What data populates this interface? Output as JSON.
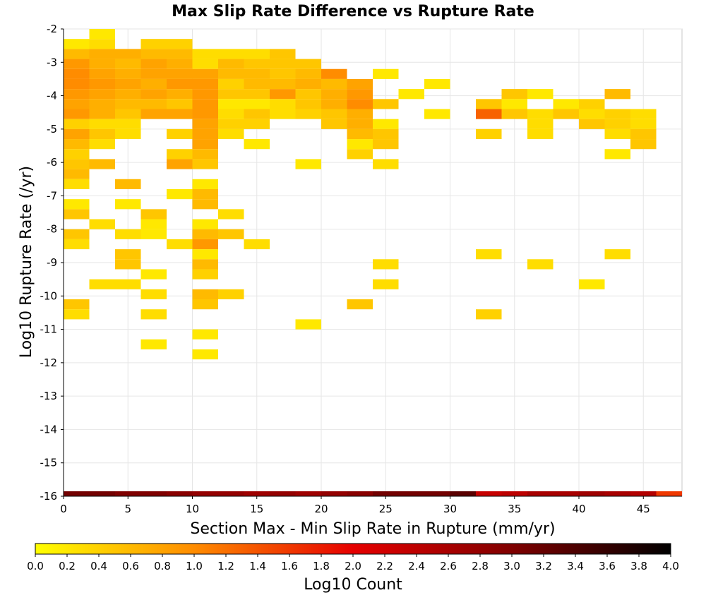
{
  "chart_data": {
    "type": "heatmap",
    "title": "Max Slip Rate Difference vs Rupture Rate",
    "xlabel": "Section Max - Min Slip Rate in Rupture (mm/yr)",
    "ylabel": "Log10 Rupture Rate (/yr)",
    "xlim": [
      0,
      48
    ],
    "ylim": [
      -16,
      -2
    ],
    "x_bin_width": 2,
    "y_bin_width": 0.3,
    "x_ticks": [
      0,
      5,
      10,
      15,
      20,
      25,
      30,
      35,
      40,
      45
    ],
    "y_ticks": [
      -2,
      -3,
      -4,
      -5,
      -6,
      -7,
      -8,
      -9,
      -10,
      -11,
      -12,
      -13,
      -14,
      -15,
      -16
    ],
    "colorbar": {
      "label": "Log10 Count",
      "range": [
        0,
        4
      ],
      "ticks": [
        "0.0",
        "0.2",
        "0.4",
        "0.6",
        "0.8",
        "1.0",
        "1.2",
        "1.4",
        "1.6",
        "1.8",
        "2.0",
        "2.2",
        "2.4",
        "2.6",
        "2.8",
        "3.0",
        "3.2",
        "3.4",
        "3.6",
        "3.8",
        "4.0"
      ],
      "colors": [
        "#ffff00",
        "#ff8c00",
        "#e60000",
        "#800000",
        "#000000"
      ]
    },
    "grid": true,
    "legend": "colorbar-bottom",
    "cells": [
      {
        "x": 3,
        "y": -2.15,
        "v": 0.2
      },
      {
        "x": 1,
        "y": -2.45,
        "v": 0.2
      },
      {
        "x": 3,
        "y": -2.45,
        "v": 0.3
      },
      {
        "x": 7,
        "y": -2.45,
        "v": 0.4
      },
      {
        "x": 9,
        "y": -2.45,
        "v": 0.4
      },
      {
        "x": 1,
        "y": -2.75,
        "v": 0.6
      },
      {
        "x": 3,
        "y": -2.75,
        "v": 0.7
      },
      {
        "x": 5,
        "y": -2.75,
        "v": 0.7
      },
      {
        "x": 7,
        "y": -2.75,
        "v": 0.6
      },
      {
        "x": 9,
        "y": -2.75,
        "v": 0.6
      },
      {
        "x": 11,
        "y": -2.75,
        "v": 0.3
      },
      {
        "x": 13,
        "y": -2.75,
        "v": 0.3
      },
      {
        "x": 15,
        "y": -2.75,
        "v": 0.3
      },
      {
        "x": 17,
        "y": -2.75,
        "v": 0.5
      },
      {
        "x": 1,
        "y": -3.05,
        "v": 0.9
      },
      {
        "x": 3,
        "y": -3.05,
        "v": 0.7
      },
      {
        "x": 5,
        "y": -3.05,
        "v": 0.6
      },
      {
        "x": 7,
        "y": -3.05,
        "v": 0.8
      },
      {
        "x": 9,
        "y": -3.05,
        "v": 0.7
      },
      {
        "x": 11,
        "y": -3.05,
        "v": 0.3
      },
      {
        "x": 13,
        "y": -3.05,
        "v": 0.6
      },
      {
        "x": 15,
        "y": -3.05,
        "v": 0.5
      },
      {
        "x": 17,
        "y": -3.05,
        "v": 0.5
      },
      {
        "x": 19,
        "y": -3.05,
        "v": 0.5
      },
      {
        "x": 1,
        "y": -3.35,
        "v": 1.0
      },
      {
        "x": 3,
        "y": -3.35,
        "v": 0.8
      },
      {
        "x": 5,
        "y": -3.35,
        "v": 0.7
      },
      {
        "x": 7,
        "y": -3.35,
        "v": 0.8
      },
      {
        "x": 9,
        "y": -3.35,
        "v": 0.8
      },
      {
        "x": 11,
        "y": -3.35,
        "v": 0.8
      },
      {
        "x": 13,
        "y": -3.35,
        "v": 0.6
      },
      {
        "x": 15,
        "y": -3.35,
        "v": 0.6
      },
      {
        "x": 17,
        "y": -3.35,
        "v": 0.5
      },
      {
        "x": 19,
        "y": -3.35,
        "v": 0.6
      },
      {
        "x": 21,
        "y": -3.35,
        "v": 1.0
      },
      {
        "x": 25,
        "y": -3.35,
        "v": 0.2
      },
      {
        "x": 1,
        "y": -3.65,
        "v": 1.0
      },
      {
        "x": 3,
        "y": -3.65,
        "v": 0.9
      },
      {
        "x": 5,
        "y": -3.65,
        "v": 0.8
      },
      {
        "x": 7,
        "y": -3.65,
        "v": 0.7
      },
      {
        "x": 9,
        "y": -3.65,
        "v": 0.9
      },
      {
        "x": 11,
        "y": -3.65,
        "v": 0.9
      },
      {
        "x": 13,
        "y": -3.65,
        "v": 0.4
      },
      {
        "x": 15,
        "y": -3.65,
        "v": 0.6
      },
      {
        "x": 17,
        "y": -3.65,
        "v": 0.6
      },
      {
        "x": 19,
        "y": -3.65,
        "v": 0.7
      },
      {
        "x": 21,
        "y": -3.65,
        "v": 0.6
      },
      {
        "x": 23,
        "y": -3.65,
        "v": 0.8
      },
      {
        "x": 29,
        "y": -3.65,
        "v": 0.2
      },
      {
        "x": 1,
        "y": -3.95,
        "v": 0.9
      },
      {
        "x": 3,
        "y": -3.95,
        "v": 0.8
      },
      {
        "x": 5,
        "y": -3.95,
        "v": 0.7
      },
      {
        "x": 7,
        "y": -3.95,
        "v": 0.8
      },
      {
        "x": 9,
        "y": -3.95,
        "v": 0.7
      },
      {
        "x": 11,
        "y": -3.95,
        "v": 0.9
      },
      {
        "x": 13,
        "y": -3.95,
        "v": 0.5
      },
      {
        "x": 15,
        "y": -3.95,
        "v": 0.5
      },
      {
        "x": 17,
        "y": -3.95,
        "v": 0.9
      },
      {
        "x": 19,
        "y": -3.95,
        "v": 0.5
      },
      {
        "x": 21,
        "y": -3.95,
        "v": 0.7
      },
      {
        "x": 23,
        "y": -3.95,
        "v": 0.9
      },
      {
        "x": 27,
        "y": -3.95,
        "v": 0.2
      },
      {
        "x": 35,
        "y": -3.95,
        "v": 0.5
      },
      {
        "x": 37,
        "y": -3.95,
        "v": 0.2
      },
      {
        "x": 43,
        "y": -3.95,
        "v": 0.6
      },
      {
        "x": 1,
        "y": -4.25,
        "v": 0.8
      },
      {
        "x": 3,
        "y": -4.25,
        "v": 0.7
      },
      {
        "x": 5,
        "y": -4.25,
        "v": 0.6
      },
      {
        "x": 7,
        "y": -4.25,
        "v": 0.6
      },
      {
        "x": 9,
        "y": -4.25,
        "v": 0.5
      },
      {
        "x": 11,
        "y": -4.25,
        "v": 0.9
      },
      {
        "x": 13,
        "y": -4.25,
        "v": 0.2
      },
      {
        "x": 15,
        "y": -4.25,
        "v": 0.2
      },
      {
        "x": 17,
        "y": -4.25,
        "v": 0.3
      },
      {
        "x": 19,
        "y": -4.25,
        "v": 0.5
      },
      {
        "x": 21,
        "y": -4.25,
        "v": 0.7
      },
      {
        "x": 23,
        "y": -4.25,
        "v": 1.0
      },
      {
        "x": 25,
        "y": -4.25,
        "v": 0.5
      },
      {
        "x": 33,
        "y": -4.25,
        "v": 0.5
      },
      {
        "x": 35,
        "y": -4.25,
        "v": 0.2
      },
      {
        "x": 39,
        "y": -4.25,
        "v": 0.2
      },
      {
        "x": 41,
        "y": -4.25,
        "v": 0.4
      },
      {
        "x": 1,
        "y": -4.55,
        "v": 0.9
      },
      {
        "x": 3,
        "y": -4.55,
        "v": 0.7
      },
      {
        "x": 5,
        "y": -4.55,
        "v": 0.5
      },
      {
        "x": 7,
        "y": -4.55,
        "v": 0.8
      },
      {
        "x": 9,
        "y": -4.55,
        "v": 0.8
      },
      {
        "x": 11,
        "y": -4.55,
        "v": 0.9
      },
      {
        "x": 13,
        "y": -4.55,
        "v": 0.3
      },
      {
        "x": 15,
        "y": -4.55,
        "v": 0.5
      },
      {
        "x": 17,
        "y": -4.55,
        "v": 0.3
      },
      {
        "x": 19,
        "y": -4.55,
        "v": 0.4
      },
      {
        "x": 21,
        "y": -4.55,
        "v": 0.5
      },
      {
        "x": 23,
        "y": -4.55,
        "v": 0.7
      },
      {
        "x": 29,
        "y": -4.55,
        "v": 0.2
      },
      {
        "x": 33,
        "y": -4.55,
        "v": 1.3
      },
      {
        "x": 35,
        "y": -4.55,
        "v": 0.5
      },
      {
        "x": 37,
        "y": -4.55,
        "v": 0.3
      },
      {
        "x": 39,
        "y": -4.55,
        "v": 0.5
      },
      {
        "x": 41,
        "y": -4.55,
        "v": 0.3
      },
      {
        "x": 43,
        "y": -4.55,
        "v": 0.4
      },
      {
        "x": 45,
        "y": -4.55,
        "v": 0.3
      },
      {
        "x": 1,
        "y": -4.85,
        "v": 0.4
      },
      {
        "x": 3,
        "y": -4.85,
        "v": 0.3
      },
      {
        "x": 5,
        "y": -4.85,
        "v": 0.3
      },
      {
        "x": 11,
        "y": -4.85,
        "v": 0.8
      },
      {
        "x": 13,
        "y": -4.85,
        "v": 0.4
      },
      {
        "x": 15,
        "y": -4.85,
        "v": 0.4
      },
      {
        "x": 21,
        "y": -4.85,
        "v": 0.5
      },
      {
        "x": 23,
        "y": -4.85,
        "v": 0.7
      },
      {
        "x": 25,
        "y": -4.85,
        "v": 0.2
      },
      {
        "x": 37,
        "y": -4.85,
        "v": 0.3
      },
      {
        "x": 41,
        "y": -4.85,
        "v": 0.5
      },
      {
        "x": 43,
        "y": -4.85,
        "v": 0.4
      },
      {
        "x": 45,
        "y": -4.85,
        "v": 0.3
      },
      {
        "x": 1,
        "y": -5.15,
        "v": 0.8
      },
      {
        "x": 3,
        "y": -5.15,
        "v": 0.5
      },
      {
        "x": 5,
        "y": -5.15,
        "v": 0.3
      },
      {
        "x": 9,
        "y": -5.15,
        "v": 0.4
      },
      {
        "x": 11,
        "y": -5.15,
        "v": 0.8
      },
      {
        "x": 13,
        "y": -5.15,
        "v": 0.3
      },
      {
        "x": 23,
        "y": -5.15,
        "v": 0.6
      },
      {
        "x": 25,
        "y": -5.15,
        "v": 0.5
      },
      {
        "x": 33,
        "y": -5.15,
        "v": 0.4
      },
      {
        "x": 37,
        "y": -5.15,
        "v": 0.3
      },
      {
        "x": 43,
        "y": -5.15,
        "v": 0.3
      },
      {
        "x": 45,
        "y": -5.15,
        "v": 0.5
      },
      {
        "x": 1,
        "y": -5.45,
        "v": 0.6
      },
      {
        "x": 3,
        "y": -5.45,
        "v": 0.3
      },
      {
        "x": 11,
        "y": -5.45,
        "v": 0.8
      },
      {
        "x": 15,
        "y": -5.45,
        "v": 0.2
      },
      {
        "x": 23,
        "y": -5.45,
        "v": 0.2
      },
      {
        "x": 25,
        "y": -5.45,
        "v": 0.5
      },
      {
        "x": 45,
        "y": -5.45,
        "v": 0.5
      },
      {
        "x": 1,
        "y": -5.75,
        "v": 0.4
      },
      {
        "x": 9,
        "y": -5.75,
        "v": 0.4
      },
      {
        "x": 11,
        "y": -5.75,
        "v": 0.6
      },
      {
        "x": 23,
        "y": -5.75,
        "v": 0.4
      },
      {
        "x": 43,
        "y": -5.75,
        "v": 0.2
      },
      {
        "x": 1,
        "y": -6.05,
        "v": 0.5
      },
      {
        "x": 3,
        "y": -6.05,
        "v": 0.6
      },
      {
        "x": 9,
        "y": -6.05,
        "v": 0.8
      },
      {
        "x": 11,
        "y": -6.05,
        "v": 0.5
      },
      {
        "x": 19,
        "y": -6.05,
        "v": 0.2
      },
      {
        "x": 25,
        "y": -6.05,
        "v": 0.3
      },
      {
        "x": 1,
        "y": -6.35,
        "v": 0.6
      },
      {
        "x": 1,
        "y": -6.65,
        "v": 0.3
      },
      {
        "x": 5,
        "y": -6.65,
        "v": 0.6
      },
      {
        "x": 11,
        "y": -6.65,
        "v": 0.2
      },
      {
        "x": 9,
        "y": -6.95,
        "v": 0.2
      },
      {
        "x": 11,
        "y": -6.95,
        "v": 0.6
      },
      {
        "x": 1,
        "y": -7.25,
        "v": 0.2
      },
      {
        "x": 5,
        "y": -7.25,
        "v": 0.2
      },
      {
        "x": 11,
        "y": -7.25,
        "v": 0.6
      },
      {
        "x": 1,
        "y": -7.55,
        "v": 0.5
      },
      {
        "x": 7,
        "y": -7.55,
        "v": 0.5
      },
      {
        "x": 13,
        "y": -7.55,
        "v": 0.3
      },
      {
        "x": 3,
        "y": -7.85,
        "v": 0.3
      },
      {
        "x": 7,
        "y": -7.85,
        "v": 0.2
      },
      {
        "x": 11,
        "y": -7.85,
        "v": 0.2
      },
      {
        "x": 1,
        "y": -8.15,
        "v": 0.5
      },
      {
        "x": 5,
        "y": -8.15,
        "v": 0.3
      },
      {
        "x": 7,
        "y": -8.15,
        "v": 0.2
      },
      {
        "x": 11,
        "y": -8.15,
        "v": 0.6
      },
      {
        "x": 13,
        "y": -8.15,
        "v": 0.5
      },
      {
        "x": 1,
        "y": -8.45,
        "v": 0.3
      },
      {
        "x": 9,
        "y": -8.45,
        "v": 0.3
      },
      {
        "x": 11,
        "y": -8.45,
        "v": 0.9
      },
      {
        "x": 15,
        "y": -8.45,
        "v": 0.3
      },
      {
        "x": 5,
        "y": -8.75,
        "v": 0.5
      },
      {
        "x": 11,
        "y": -8.75,
        "v": 0.2
      },
      {
        "x": 33,
        "y": -8.75,
        "v": 0.3
      },
      {
        "x": 43,
        "y": -8.75,
        "v": 0.3
      },
      {
        "x": 5,
        "y": -9.05,
        "v": 0.5
      },
      {
        "x": 11,
        "y": -9.05,
        "v": 0.6
      },
      {
        "x": 25,
        "y": -9.05,
        "v": 0.3
      },
      {
        "x": 37,
        "y": -9.05,
        "v": 0.3
      },
      {
        "x": 7,
        "y": -9.35,
        "v": 0.2
      },
      {
        "x": 11,
        "y": -9.35,
        "v": 0.4
      },
      {
        "x": 3,
        "y": -9.65,
        "v": 0.3
      },
      {
        "x": 5,
        "y": -9.65,
        "v": 0.3
      },
      {
        "x": 25,
        "y": -9.65,
        "v": 0.3
      },
      {
        "x": 41,
        "y": -9.65,
        "v": 0.2
      },
      {
        "x": 7,
        "y": -9.95,
        "v": 0.3
      },
      {
        "x": 11,
        "y": -9.95,
        "v": 0.6
      },
      {
        "x": 13,
        "y": -9.95,
        "v": 0.4
      },
      {
        "x": 1,
        "y": -10.25,
        "v": 0.5
      },
      {
        "x": 11,
        "y": -10.25,
        "v": 0.5
      },
      {
        "x": 23,
        "y": -10.25,
        "v": 0.5
      },
      {
        "x": 1,
        "y": -10.55,
        "v": 0.3
      },
      {
        "x": 7,
        "y": -10.55,
        "v": 0.3
      },
      {
        "x": 33,
        "y": -10.55,
        "v": 0.4
      },
      {
        "x": 19,
        "y": -10.85,
        "v": 0.2
      },
      {
        "x": 11,
        "y": -11.15,
        "v": 0.2
      },
      {
        "x": 7,
        "y": -11.45,
        "v": 0.2
      },
      {
        "x": 11,
        "y": -11.75,
        "v": 0.2
      },
      {
        "x": 1,
        "y": -16.0,
        "v": 3.1
      },
      {
        "x": 3,
        "y": -16.0,
        "v": 3.1
      },
      {
        "x": 5,
        "y": -16.0,
        "v": 3.0
      },
      {
        "x": 7,
        "y": -16.0,
        "v": 3.0
      },
      {
        "x": 9,
        "y": -16.0,
        "v": 2.9
      },
      {
        "x": 11,
        "y": -16.0,
        "v": 2.8
      },
      {
        "x": 13,
        "y": -16.0,
        "v": 2.8
      },
      {
        "x": 15,
        "y": -16.0,
        "v": 2.7
      },
      {
        "x": 17,
        "y": -16.0,
        "v": 2.8
      },
      {
        "x": 19,
        "y": -16.0,
        "v": 2.7
      },
      {
        "x": 21,
        "y": -16.0,
        "v": 2.8
      },
      {
        "x": 23,
        "y": -16.0,
        "v": 2.9
      },
      {
        "x": 25,
        "y": -16.0,
        "v": 3.1
      },
      {
        "x": 27,
        "y": -16.0,
        "v": 3.1
      },
      {
        "x": 29,
        "y": -16.0,
        "v": 3.1
      },
      {
        "x": 31,
        "y": -16.0,
        "v": 3.3
      },
      {
        "x": 33,
        "y": -16.0,
        "v": 2.3
      },
      {
        "x": 35,
        "y": -16.0,
        "v": 2.4
      },
      {
        "x": 37,
        "y": -16.0,
        "v": 2.6
      },
      {
        "x": 39,
        "y": -16.0,
        "v": 2.6
      },
      {
        "x": 41,
        "y": -16.0,
        "v": 2.7
      },
      {
        "x": 43,
        "y": -16.0,
        "v": 2.6
      },
      {
        "x": 45,
        "y": -16.0,
        "v": 2.5
      },
      {
        "x": 47,
        "y": -16.0,
        "v": 1.6
      }
    ]
  }
}
